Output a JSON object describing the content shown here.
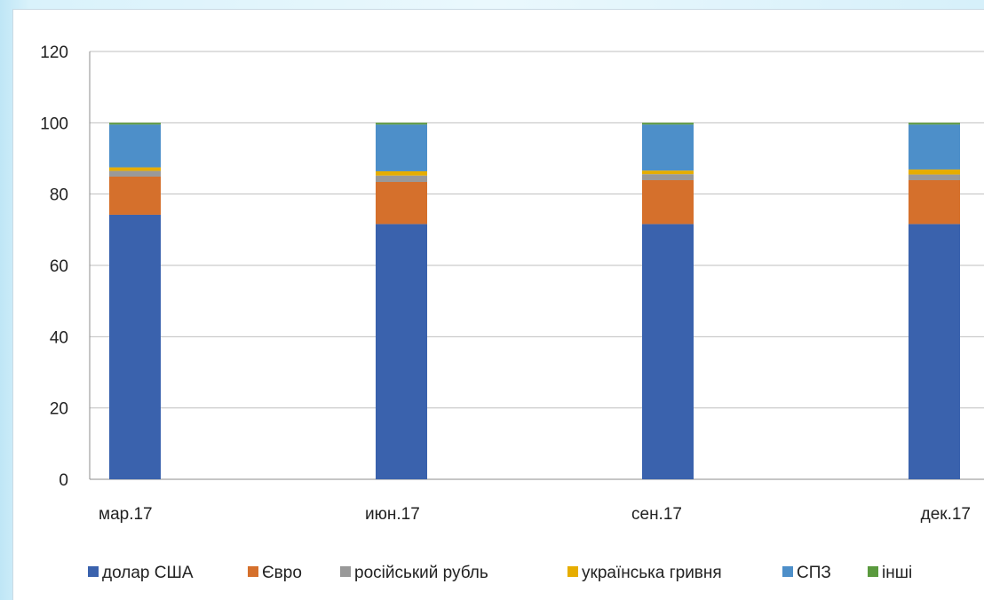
{
  "chart_data": {
    "type": "bar",
    "stacked": true,
    "title": "",
    "xlabel": "",
    "ylabel": "",
    "ylim": [
      0,
      120
    ],
    "yticks": [
      0,
      20,
      40,
      60,
      80,
      100,
      120
    ],
    "grid": true,
    "legend_position": "bottom",
    "categories": [
      "мар.17",
      "июн.17",
      "сен.17",
      "дек.17"
    ],
    "series": [
      {
        "name": "долар США",
        "color": "#3a62ad",
        "values": [
          74.2,
          71.6,
          71.6,
          71.6
        ]
      },
      {
        "name": "Євро",
        "color": "#d5702c",
        "values": [
          10.7,
          11.8,
          12.3,
          12.3
        ]
      },
      {
        "name": "російський рубль",
        "color": "#999999",
        "values": [
          1.6,
          1.8,
          1.7,
          1.6
        ]
      },
      {
        "name": "українська гривня",
        "color": "#e6ad00",
        "values": [
          1.0,
          1.2,
          1.0,
          1.4
        ]
      },
      {
        "name": "СПЗ",
        "color": "#4d8fc9",
        "values": [
          12.0,
          13.1,
          12.9,
          12.6
        ]
      },
      {
        "name": "інші",
        "color": "#5a9a3e",
        "values": [
          0.5,
          0.5,
          0.5,
          0.5
        ]
      }
    ]
  }
}
